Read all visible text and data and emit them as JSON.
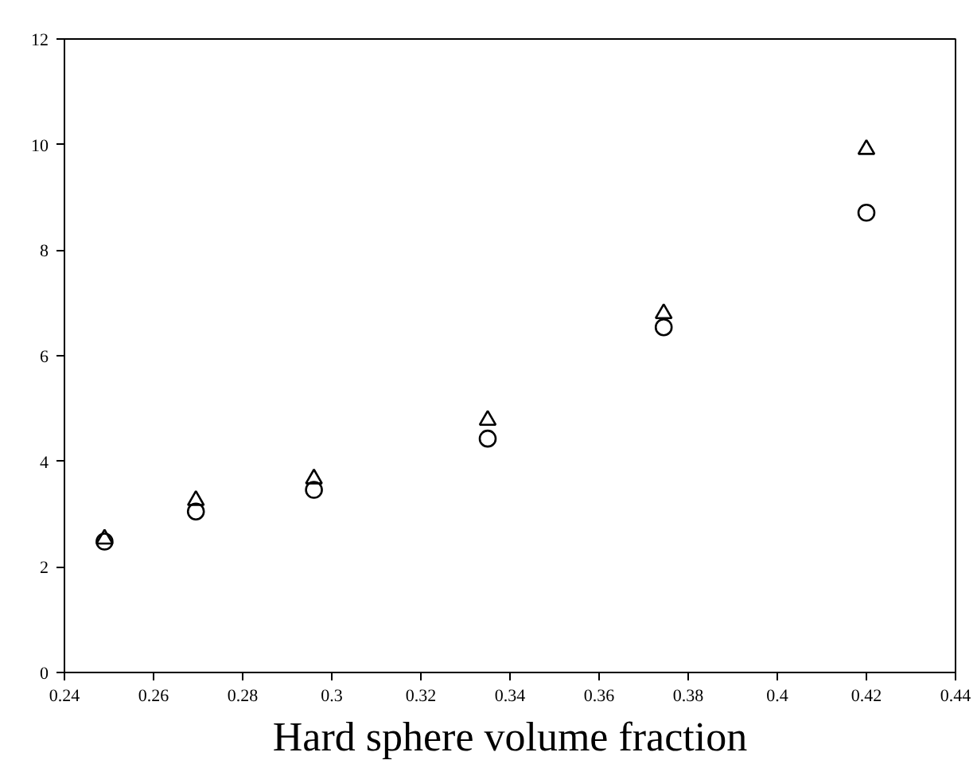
{
  "chart_data": {
    "type": "scatter",
    "xlabel": "Hard sphere volume fraction",
    "x": [
      0.249,
      0.2695,
      0.296,
      0.335,
      0.3745,
      0.42
    ],
    "series": [
      {
        "color": "#000000",
        "marker": "circle",
        "values": [
          2.48,
          3.05,
          3.46,
          4.43,
          6.54,
          8.71
        ]
      },
      {
        "color": "#000000",
        "marker": "triangle",
        "values": [
          2.53,
          3.26,
          3.67,
          4.78,
          6.8,
          9.91
        ]
      }
    ],
    "xlim": [
      0.24,
      0.44
    ],
    "xticks": [
      0.24,
      0.26,
      0.28,
      0.3,
      0.32,
      0.34,
      0.36,
      0.38,
      0.4,
      0.42,
      0.44
    ],
    "ylim": [
      0,
      12
    ],
    "yticks": [
      0,
      2,
      4,
      6,
      8,
      10,
      12
    ],
    "grid": false
  }
}
